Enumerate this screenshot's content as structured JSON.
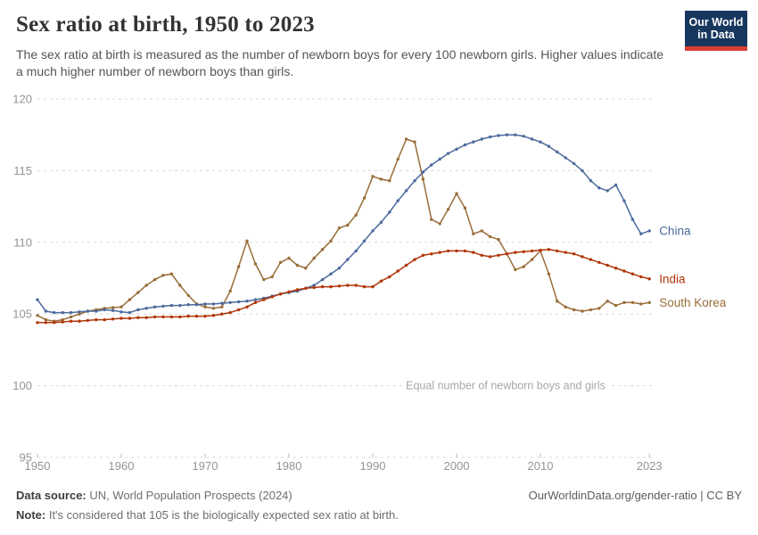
{
  "header": {
    "title": "Sex ratio at birth, 1950 to 2023",
    "subtitle": "The sex ratio at birth is measured as the number of newborn boys for every 100 newborn girls. Higher values indicate a much higher number of newborn boys than girls.",
    "logo": {
      "line1": "Our World",
      "line2": "in Data",
      "bg_color": "#18375f",
      "bar_color": "#dc3f34"
    }
  },
  "footer": {
    "source_label": "Data source:",
    "source_value": " UN, World Population Prospects (2024)",
    "citation": "OurWorldinData.org/gender-ratio | CC BY",
    "note_label": "Note:",
    "note_value": " It's considered that 105 is the biologically expected sex ratio at birth."
  },
  "chart_data": {
    "type": "line",
    "title": "Sex ratio at birth, 1950 to 2023",
    "xlabel": "",
    "ylabel": "",
    "ylim": [
      95,
      120
    ],
    "yticks": [
      95,
      100,
      105,
      110,
      115,
      120
    ],
    "xticks": [
      1950,
      1960,
      1970,
      1980,
      1990,
      2000,
      2010,
      2023
    ],
    "grid": true,
    "legend_position": "end-of-line",
    "annotation": {
      "text": "Equal number of newborn boys and girls",
      "at_y": 100
    },
    "grid_color": "#d9d9d9",
    "tick_label_color": "#949494",
    "annotation_color": "#a6a6a6",
    "years": [
      1950,
      1951,
      1952,
      1953,
      1954,
      1955,
      1956,
      1957,
      1958,
      1959,
      1960,
      1961,
      1962,
      1963,
      1964,
      1965,
      1966,
      1967,
      1968,
      1969,
      1970,
      1971,
      1972,
      1973,
      1974,
      1975,
      1976,
      1977,
      1978,
      1979,
      1980,
      1981,
      1982,
      1983,
      1984,
      1985,
      1986,
      1987,
      1988,
      1989,
      1990,
      1991,
      1992,
      1993,
      1994,
      1995,
      1996,
      1997,
      1998,
      1999,
      2000,
      2001,
      2002,
      2003,
      2004,
      2005,
      2006,
      2007,
      2008,
      2009,
      2010,
      2011,
      2012,
      2013,
      2014,
      2015,
      2016,
      2017,
      2018,
      2019,
      2020,
      2021,
      2022,
      2023
    ],
    "series": [
      {
        "name": "South Korea",
        "color": "#996D39",
        "values": [
          104.9,
          104.6,
          104.5,
          104.6,
          104.8,
          105,
          105.2,
          105.3,
          105.4,
          105.45,
          105.5,
          106,
          106.5,
          107,
          107.4,
          107.7,
          107.8,
          107,
          106.3,
          105.7,
          105.5,
          105.4,
          105.5,
          106.6,
          108.3,
          110.1,
          108.5,
          107.4,
          107.6,
          108.6,
          108.9,
          108.4,
          108.2,
          108.9,
          109.5,
          110.1,
          111,
          111.2,
          111.9,
          113.1,
          114.6,
          114.4,
          114.3,
          115.8,
          117.2,
          117,
          114.4,
          111.6,
          111.3,
          112.3,
          113.4,
          112.4,
          110.6,
          110.8,
          110.4,
          110.2,
          109.2,
          108.1,
          108.3,
          108.8,
          109.4,
          107.8,
          105.9,
          105.5,
          105.3,
          105.2,
          105.3,
          105.4,
          105.9,
          105.6,
          105.8,
          105.8,
          105.7,
          105.8,
          105.8
        ]
      },
      {
        "name": "China",
        "color": "#4C6A9C",
        "values": [
          106,
          105.2,
          105.1,
          105.1,
          105.1,
          105.15,
          105.2,
          105.2,
          105.3,
          105.25,
          105.15,
          105.1,
          105.3,
          105.4,
          105.5,
          105.55,
          105.6,
          105.6,
          105.65,
          105.65,
          105.7,
          105.7,
          105.75,
          105.8,
          105.85,
          105.9,
          106,
          106.1,
          106.25,
          106.4,
          106.5,
          106.6,
          106.8,
          107,
          107.4,
          107.8,
          108.2,
          108.8,
          109.4,
          110.1,
          110.8,
          111.4,
          112.1,
          112.9,
          113.6,
          114.3,
          114.9,
          115.4,
          115.8,
          116.2,
          116.5,
          116.8,
          117,
          117.2,
          117.35,
          117.45,
          117.5,
          117.5,
          117.4,
          117.2,
          117,
          116.7,
          116.3,
          115.9,
          115.5,
          115,
          114.3,
          113.8,
          113.6,
          114,
          112.9,
          111.6,
          110.6,
          110.8
        ]
      },
      {
        "name": "India",
        "color": "#B13507",
        "values": [
          104.4,
          104.4,
          104.4,
          104.45,
          104.5,
          104.5,
          104.55,
          104.6,
          104.6,
          104.65,
          104.7,
          104.7,
          104.75,
          104.75,
          104.8,
          104.8,
          104.8,
          104.8,
          104.85,
          104.85,
          104.85,
          104.9,
          105,
          105.1,
          105.3,
          105.5,
          105.8,
          106,
          106.2,
          106.4,
          106.55,
          106.7,
          106.8,
          106.85,
          106.9,
          106.9,
          106.95,
          107,
          107,
          106.9,
          106.9,
          107.3,
          107.6,
          108,
          108.4,
          108.8,
          109.1,
          109.2,
          109.3,
          109.4,
          109.4,
          109.4,
          109.3,
          109.1,
          109,
          109.1,
          109.2,
          109.3,
          109.35,
          109.4,
          109.45,
          109.5,
          109.4,
          109.3,
          109.2,
          109,
          108.8,
          108.6,
          108.4,
          108.2,
          108,
          107.8,
          107.6,
          107.45
        ]
      }
    ]
  }
}
